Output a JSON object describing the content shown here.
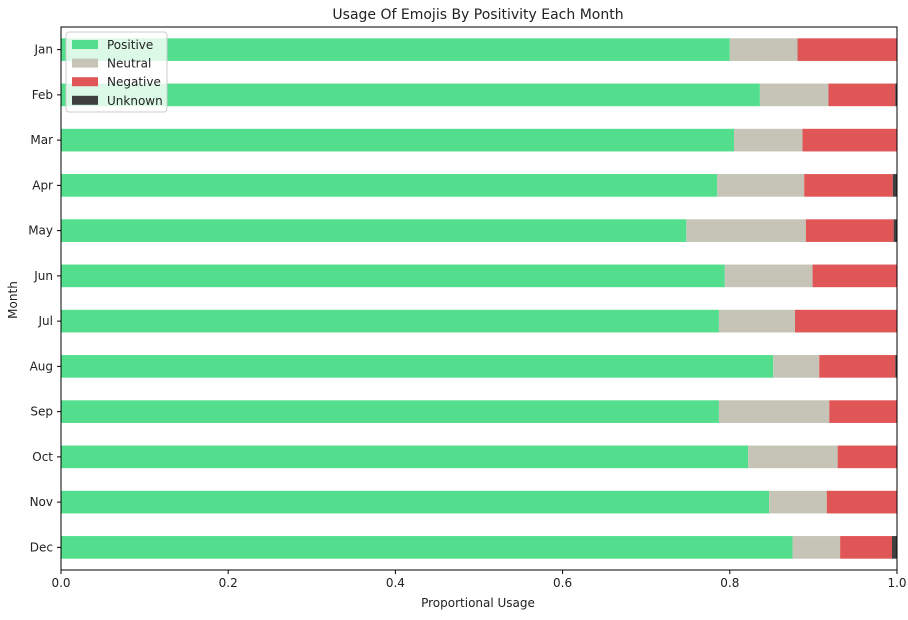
{
  "chart_data": {
    "type": "bar",
    "orientation": "horizontal",
    "stacked": true,
    "title": "Usage Of Emojis By Positivity Each Month",
    "xlabel": "Proportional Usage",
    "ylabel": "Month",
    "xlim": [
      0.0,
      1.0
    ],
    "xticks": [
      "0.0",
      "0.2",
      "0.4",
      "0.6",
      "0.8",
      "1.0"
    ],
    "grid": false,
    "legend_position": "top-left",
    "categories": [
      "Jan",
      "Feb",
      "Mar",
      "Apr",
      "May",
      "Jun",
      "Jul",
      "Aug",
      "Sep",
      "Oct",
      "Nov",
      "Dec"
    ],
    "series": [
      {
        "name": "Positive",
        "color": "#52de8c",
        "values": [
          0.8,
          0.836,
          0.805,
          0.785,
          0.748,
          0.794,
          0.787,
          0.852,
          0.787,
          0.822,
          0.847,
          0.875
        ]
      },
      {
        "name": "Neutral",
        "color": "#c5c4b6",
        "values": [
          0.081,
          0.082,
          0.082,
          0.104,
          0.143,
          0.105,
          0.091,
          0.055,
          0.132,
          0.107,
          0.069,
          0.057
        ]
      },
      {
        "name": "Negative",
        "color": "#e05656",
        "values": [
          0.119,
          0.08,
          0.113,
          0.106,
          0.105,
          0.101,
          0.122,
          0.091,
          0.081,
          0.071,
          0.084,
          0.062
        ]
      },
      {
        "name": "Unknown",
        "color": "#404040",
        "values": [
          0.0,
          0.002,
          0.0,
          0.005,
          0.004,
          0.0,
          0.0,
          0.002,
          0.0,
          0.0,
          0.0,
          0.006
        ]
      }
    ]
  }
}
